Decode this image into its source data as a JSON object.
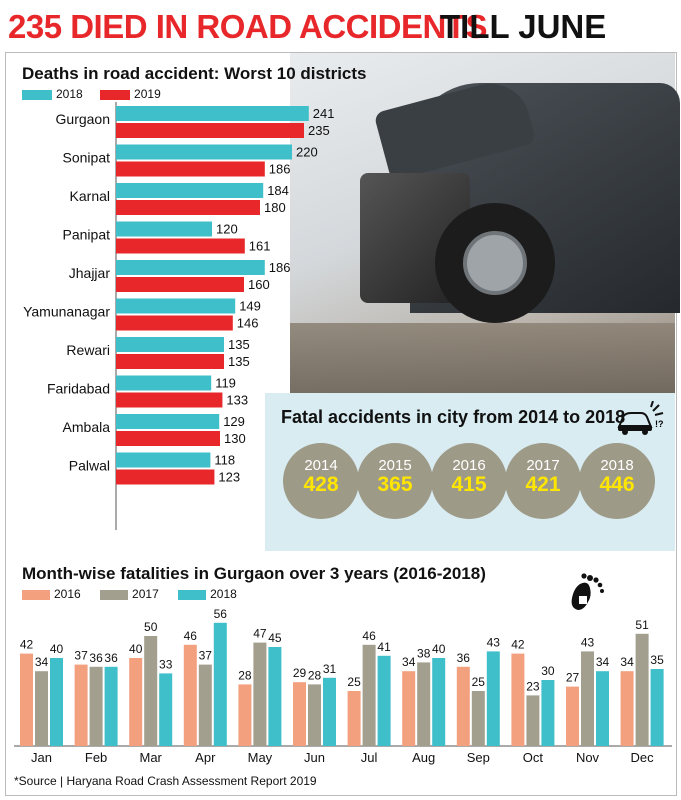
{
  "headline": {
    "part1": "235 DIED IN ROAD ACCIDENTS",
    "part2": "TILL JUNE"
  },
  "colors": {
    "y2016": "#f2a07e",
    "y2017": "#a39f8f",
    "y2018": "#3fbfca",
    "y2019": "#e8272a",
    "accent": "#e8272a",
    "circle": "#9e9a88",
    "circle_value": "#ffe600",
    "fatal_bg": "#d8ecf2"
  },
  "fatal": {
    "title": "Fatal accidents in city from 2014 to 2018",
    "icon": "car-crash-icon",
    "items": [
      {
        "year": "2014",
        "value": "428"
      },
      {
        "year": "2015",
        "value": "365"
      },
      {
        "year": "2016",
        "value": "415"
      },
      {
        "year": "2017",
        "value": "421"
      },
      {
        "year": "2018",
        "value": "446"
      }
    ]
  },
  "chart_data": [
    {
      "type": "bar",
      "orientation": "horizontal",
      "title": "Deaths in road accident: Worst 10 districts",
      "categories": [
        "Gurgaon",
        "Sonipat",
        "Karnal",
        "Panipat",
        "Jhajjar",
        "Yamunanagar",
        "Rewari",
        "Faridabad",
        "Ambala",
        "Palwal"
      ],
      "series": [
        {
          "name": "2018",
          "values": [
            241,
            220,
            184,
            120,
            186,
            149,
            135,
            119,
            129,
            118
          ]
        },
        {
          "name": "2019",
          "values": [
            235,
            186,
            180,
            161,
            160,
            146,
            135,
            133,
            130,
            123
          ]
        }
      ],
      "legend": "top-left"
    },
    {
      "type": "bar",
      "title": "Month-wise fatalities in Gurgaon over 3 years (2016-2018)",
      "categories": [
        "Jan",
        "Feb",
        "Mar",
        "Apr",
        "May",
        "Jun",
        "Jul",
        "Aug",
        "Sep",
        "Oct",
        "Nov",
        "Dec"
      ],
      "series": [
        {
          "name": "2016",
          "values": [
            42,
            37,
            40,
            46,
            28,
            29,
            25,
            34,
            36,
            42,
            27,
            34
          ]
        },
        {
          "name": "2017",
          "values": [
            34,
            36,
            50,
            37,
            47,
            28,
            46,
            38,
            25,
            23,
            43,
            51
          ]
        },
        {
          "name": "2018",
          "values": [
            40,
            36,
            33,
            56,
            45,
            31,
            41,
            40,
            43,
            30,
            34,
            35
          ]
        }
      ],
      "legend": "top-left",
      "icon": "footprint-icon"
    }
  ],
  "source": "*Source | Haryana Road Crash Assessment Report 2019"
}
